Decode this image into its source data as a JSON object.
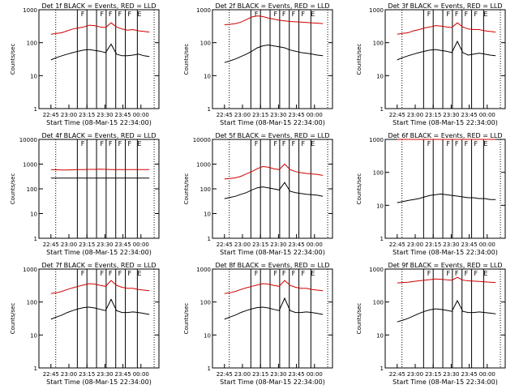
{
  "start_time_label": "Start Time (08-Mar-15 22:34:00)",
  "ylabel": "Counts/sec",
  "chart_data": [
    {
      "type": "line",
      "title": "Det 1f BLACK = Events, RED = LLD",
      "xlabel": "Start Time (08-Mar-15 22:34:00)",
      "ylabel": "Counts/sec",
      "yscale": "log",
      "ylim": [
        1,
        1000
      ],
      "y_ticks": [
        "1",
        "10",
        "100",
        "1000"
      ],
      "x_ticks": [
        "22:45",
        "23:00",
        "23:15",
        "23:30",
        "23:45",
        "00:00"
      ],
      "markers": [
        "F",
        "F",
        "F",
        "F",
        "F",
        "E"
      ],
      "series": [
        {
          "color": "#d00000",
          "values": [
            180,
            190,
            200,
            230,
            260,
            280,
            300,
            340,
            330,
            300,
            290,
            400,
            300,
            260,
            240,
            250,
            230,
            220,
            210
          ]
        },
        {
          "color": "#000000",
          "values": [
            30,
            35,
            40,
            45,
            50,
            55,
            60,
            62,
            58,
            55,
            50,
            90,
            45,
            40,
            40,
            42,
            45,
            40,
            38
          ]
        }
      ]
    },
    {
      "type": "line",
      "title": "Det 2f BLACK = Events, RED = LLD",
      "xlabel": "Start Time (08-Mar-15 22:34:00)",
      "ylabel": "Counts/sec",
      "yscale": "log",
      "ylim": [
        1,
        1000
      ],
      "y_ticks": [
        "1",
        "10",
        "100",
        "1000"
      ],
      "x_ticks": [
        "22:45",
        "23:00",
        "23:15",
        "23:30",
        "23:45",
        "00:00"
      ],
      "markers": [
        "F",
        "F",
        "F",
        "F",
        "F",
        "E"
      ],
      "series": [
        {
          "color": "#d00000",
          "values": [
            350,
            360,
            380,
            420,
            500,
            600,
            650,
            620,
            560,
            520,
            480,
            460,
            440,
            430,
            420,
            410,
            400,
            390,
            380
          ]
        },
        {
          "color": "#000000",
          "values": [
            25,
            28,
            32,
            38,
            45,
            55,
            70,
            80,
            85,
            80,
            75,
            70,
            60,
            55,
            50,
            48,
            45,
            42,
            40
          ]
        }
      ]
    },
    {
      "type": "line",
      "title": "Det 3f BLACK = Events, RED = LLD",
      "xlabel": "Start Time (08-Mar-15 22:34:00)",
      "ylabel": "Counts/sec",
      "yscale": "log",
      "ylim": [
        1,
        1000
      ],
      "y_ticks": [
        "1",
        "10",
        "100",
        "1000"
      ],
      "x_ticks": [
        "22:45",
        "23:00",
        "23:15",
        "23:30",
        "23:45",
        "00:00"
      ],
      "markers": [
        "F",
        "F",
        "F",
        "F",
        "F",
        "E"
      ],
      "series": [
        {
          "color": "#d00000",
          "values": [
            180,
            190,
            200,
            230,
            250,
            280,
            300,
            330,
            320,
            300,
            290,
            400,
            300,
            260,
            250,
            250,
            230,
            220,
            210
          ]
        },
        {
          "color": "#000000",
          "values": [
            30,
            35,
            40,
            45,
            50,
            55,
            60,
            62,
            58,
            55,
            50,
            110,
            50,
            42,
            45,
            48,
            45,
            42,
            40
          ]
        }
      ]
    },
    {
      "type": "line",
      "title": "Det 4f BLACK = Events, RED = LLD",
      "xlabel": "Start Time (08-Mar-15 22:34:00)",
      "ylabel": "Counts/sec",
      "yscale": "log",
      "ylim": [
        1,
        10000
      ],
      "y_ticks": [
        "1",
        "10",
        "100",
        "1000",
        "10000"
      ],
      "x_ticks": [
        "22:45",
        "23:00",
        "23:15",
        "23:30",
        "23:45",
        "00:00"
      ],
      "markers": [
        "F",
        "F",
        "F",
        "F",
        "F",
        "E"
      ],
      "series": [
        {
          "color": "#d00000",
          "values": [
            600,
            590,
            580,
            580,
            590,
            600,
            600,
            610,
            610,
            620,
            610,
            600,
            600,
            600,
            600,
            600,
            600,
            600,
            600
          ]
        },
        {
          "color": "#000000",
          "values": [
            270,
            270,
            270,
            270,
            270,
            270,
            270,
            270,
            270,
            270,
            270,
            270,
            270,
            270,
            270,
            270,
            270,
            270,
            270
          ]
        }
      ]
    },
    {
      "type": "line",
      "title": "Det 5f BLACK = Events, RED = LLD",
      "xlabel": "Start Time (08-Mar-15 22:34:00)",
      "ylabel": "Counts/sec",
      "yscale": "log",
      "ylim": [
        1,
        10000
      ],
      "y_ticks": [
        "1",
        "10",
        "100",
        "1000",
        "10000"
      ],
      "x_ticks": [
        "22:45",
        "23:00",
        "23:15",
        "23:30",
        "23:45",
        "00:00"
      ],
      "markers": [
        "F",
        "F",
        "F",
        "F",
        "F",
        "E"
      ],
      "series": [
        {
          "color": "#d00000",
          "values": [
            250,
            260,
            280,
            320,
            400,
            500,
            650,
            800,
            750,
            650,
            600,
            1000,
            600,
            500,
            450,
            420,
            400,
            380,
            350
          ]
        },
        {
          "color": "#000000",
          "values": [
            40,
            45,
            50,
            60,
            70,
            90,
            110,
            120,
            110,
            100,
            90,
            180,
            80,
            70,
            65,
            60,
            58,
            55,
            50
          ]
        }
      ]
    },
    {
      "type": "line",
      "title": "Det 6f BLACK = Events, RED = LLD",
      "xlabel": "Start Time (08-Mar-15 22:34:00)",
      "ylabel": "Counts/sec",
      "yscale": "log",
      "ylim": [
        1,
        1000
      ],
      "y_ticks": [
        "1",
        "10",
        "100",
        "1000"
      ],
      "x_ticks": [
        "22:45",
        "23:00",
        "23:15",
        "23:30",
        "23:45",
        "00:00"
      ],
      "markers": [
        "F",
        "F",
        "F",
        "F",
        "F",
        "E"
      ],
      "series": [
        {
          "color": "#d00000",
          "values": [
            1000,
            1000,
            1000,
            1000,
            1000,
            1000,
            1000,
            1000,
            1000,
            1000,
            1000,
            1000,
            1000,
            1000,
            1000,
            1000,
            1000,
            1000,
            1000
          ]
        },
        {
          "color": "#000000",
          "values": [
            12,
            13,
            14,
            15,
            16,
            18,
            20,
            21,
            22,
            21,
            20,
            19,
            18,
            17,
            17,
            16,
            16,
            15,
            15
          ]
        }
      ]
    },
    {
      "type": "line",
      "title": "Det 7f BLACK = Events, RED = LLD",
      "xlabel": "Start Time (08-Mar-15 22:34:00)",
      "ylabel": "Counts/sec",
      "yscale": "log",
      "ylim": [
        1,
        1000
      ],
      "y_ticks": [
        "1",
        "10",
        "100",
        "1000"
      ],
      "x_ticks": [
        "22:45",
        "23:00",
        "23:15",
        "23:30",
        "23:45",
        "00:00"
      ],
      "markers": [
        "F",
        "F",
        "F",
        "F",
        "F",
        "E"
      ],
      "series": [
        {
          "color": "#d00000",
          "values": [
            180,
            190,
            210,
            240,
            270,
            300,
            330,
            360,
            350,
            320,
            300,
            450,
            320,
            280,
            260,
            260,
            240,
            230,
            220
          ]
        },
        {
          "color": "#000000",
          "values": [
            30,
            35,
            40,
            48,
            55,
            62,
            68,
            70,
            66,
            60,
            55,
            120,
            55,
            48,
            48,
            50,
            48,
            45,
            42
          ]
        }
      ]
    },
    {
      "type": "line",
      "title": "Det 8f BLACK = Events, RED = LLD",
      "xlabel": "Start Time (08-Mar-15 22:34:00)",
      "ylabel": "Counts/sec",
      "yscale": "log",
      "ylim": [
        1,
        1000
      ],
      "y_ticks": [
        "1",
        "10",
        "100",
        "1000"
      ],
      "x_ticks": [
        "22:45",
        "23:00",
        "23:15",
        "23:30",
        "23:45",
        "00:00"
      ],
      "markers": [
        "F",
        "F",
        "F",
        "F",
        "F",
        "E"
      ],
      "series": [
        {
          "color": "#d00000",
          "values": [
            180,
            190,
            210,
            240,
            270,
            300,
            330,
            360,
            350,
            320,
            300,
            450,
            320,
            280,
            260,
            260,
            240,
            230,
            220
          ]
        },
        {
          "color": "#000000",
          "values": [
            30,
            35,
            40,
            48,
            55,
            62,
            68,
            70,
            66,
            60,
            55,
            130,
            55,
            48,
            48,
            50,
            48,
            45,
            42
          ]
        }
      ]
    },
    {
      "type": "line",
      "title": "Det 9f BLACK = Events, RED = LLD",
      "xlabel": "Start Time (08-Mar-15 22:34:00)",
      "ylabel": "Counts/sec",
      "yscale": "log",
      "ylim": [
        1,
        1000
      ],
      "y_ticks": [
        "1",
        "10",
        "100",
        "1000"
      ],
      "x_ticks": [
        "22:45",
        "23:00",
        "23:15",
        "23:30",
        "23:45",
        "00:00"
      ],
      "markers": [
        "F",
        "F",
        "F",
        "F",
        "F",
        "E"
      ],
      "series": [
        {
          "color": "#d00000",
          "values": [
            380,
            390,
            400,
            420,
            440,
            460,
            480,
            500,
            490,
            470,
            460,
            560,
            460,
            440,
            430,
            420,
            410,
            400,
            390
          ]
        },
        {
          "color": "#000000",
          "values": [
            25,
            28,
            32,
            38,
            45,
            52,
            58,
            62,
            60,
            56,
            52,
            110,
            52,
            48,
            48,
            50,
            48,
            46,
            44
          ]
        }
      ]
    }
  ]
}
